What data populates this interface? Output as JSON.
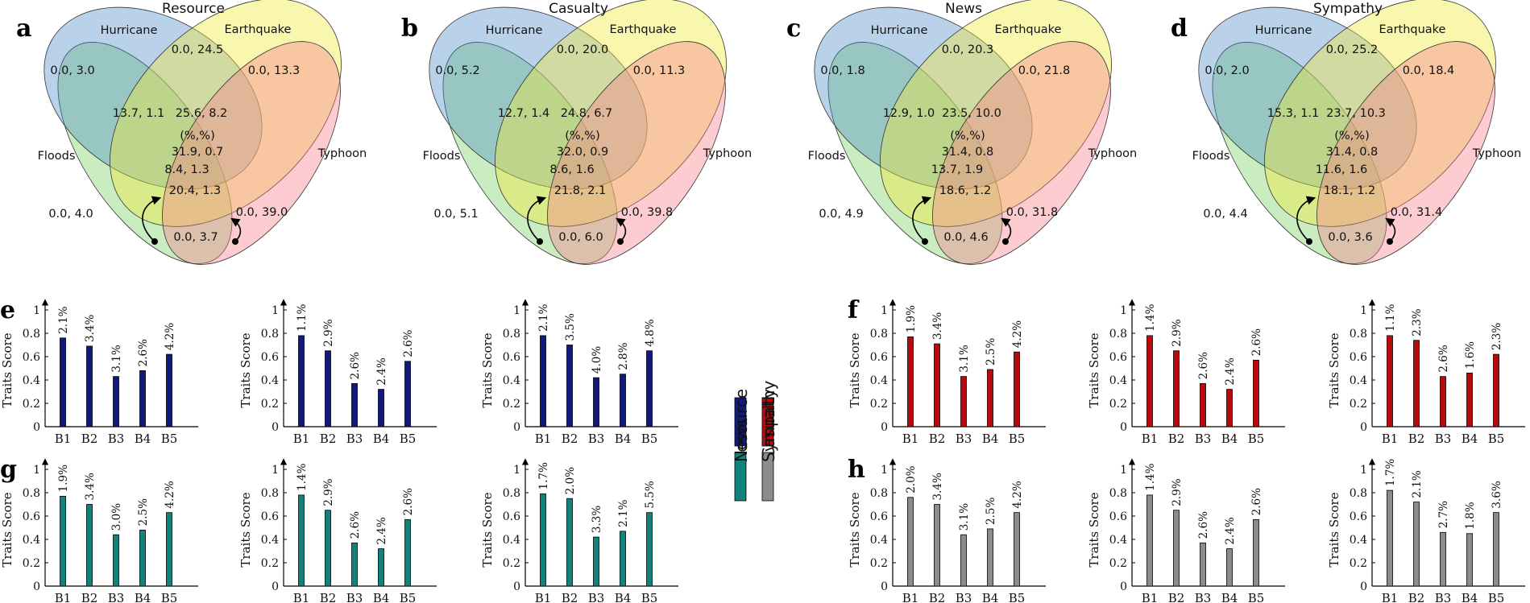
{
  "chart_data": [
    {
      "type": "venn",
      "panel_label": "a",
      "title": "Resource",
      "sets": [
        "Hurricane",
        "Earthquake",
        "Floods",
        "Typhoon"
      ],
      "center_header": "(%,%)",
      "regions": [
        "0.0, 3.0",
        "0.0, 24.5",
        "0.0, 13.3",
        "13.7, 1.1",
        "25.6, 8.2",
        "31.9, 0.7",
        "8.4, 1.3",
        "20.4, 1.3",
        "0.0, 4.0",
        "0.0, 39.0",
        "0.0, 3.7"
      ]
    },
    {
      "type": "venn",
      "panel_label": "b",
      "title": "Casualty",
      "sets": [
        "Hurricane",
        "Earthquake",
        "Floods",
        "Typhoon"
      ],
      "center_header": "(%,%)",
      "regions": [
        "0.0, 5.2",
        "0.0, 20.0",
        "0.0, 11.3",
        "12.7, 1.4",
        "24.8, 6.7",
        "32.0, 0.9",
        "8.6, 1.6",
        "21.8, 2.1",
        "0.0, 5.1",
        "0.0, 39.8",
        "0.0, 6.0"
      ]
    },
    {
      "type": "venn",
      "panel_label": "c",
      "title": "News",
      "sets": [
        "Hurricane",
        "Earthquake",
        "Floods",
        "Typhoon"
      ],
      "center_header": "(%,%)",
      "regions": [
        "0.0, 1.8",
        "0.0, 20.3",
        "0.0, 21.8",
        "12.9, 1.0",
        "23.5, 10.0",
        "31.4, 0.8",
        "13.7, 1.9",
        "18.6, 1.2",
        "0.0, 4.9",
        "0.0, 31.8",
        "0.0, 4.6"
      ]
    },
    {
      "type": "venn",
      "panel_label": "d",
      "title": "Sympathy",
      "sets": [
        "Hurricane",
        "Earthquake",
        "Floods",
        "Typhoon"
      ],
      "center_header": "(%,%)",
      "regions": [
        "0.0, 2.0",
        "0.0, 25.2",
        "0.0, 18.4",
        "15.3, 1.1",
        "23.7, 10.3",
        "31.4, 0.8",
        "11.6, 1.6",
        "18.1, 1.2",
        "0.0, 4.4",
        "0.0, 31.4",
        "0.0, 3.6"
      ]
    },
    {
      "type": "bar",
      "panel_label": "e",
      "series": "Resource",
      "color": "#111a7c",
      "categories": [
        "B1",
        "B2",
        "B3",
        "B4",
        "B5"
      ],
      "ylabel": "Traits Score",
      "ylim": [
        0,
        1
      ],
      "yticks": [
        "0",
        "0.2",
        "0.4",
        "0.6",
        "0.8",
        "1"
      ],
      "values": [
        0.76,
        0.69,
        0.43,
        0.48,
        0.62
      ],
      "labels": [
        "2.1%",
        "3.4%",
        "3.1%",
        "2.6%",
        "4.2%"
      ]
    },
    {
      "type": "bar",
      "panel_label": "",
      "series": "Resource",
      "color": "#111a7c",
      "categories": [
        "B1",
        "B2",
        "B3",
        "B4",
        "B5"
      ],
      "ylabel": "Traits Score",
      "ylim": [
        0,
        1
      ],
      "yticks": [
        "0",
        "0.2",
        "0.4",
        "0.6",
        "0.8",
        "1"
      ],
      "values": [
        0.78,
        0.65,
        0.37,
        0.32,
        0.56
      ],
      "labels": [
        "1.1%",
        "2.9%",
        "2.6%",
        "2.4%",
        "2.6%"
      ]
    },
    {
      "type": "bar",
      "panel_label": "",
      "series": "Resource",
      "color": "#111a7c",
      "categories": [
        "B1",
        "B2",
        "B3",
        "B4",
        "B5"
      ],
      "ylabel": "Traits Score",
      "ylim": [
        0,
        1
      ],
      "yticks": [
        "0",
        "0.2",
        "0.4",
        "0.6",
        "0.8",
        "1"
      ],
      "values": [
        0.78,
        0.7,
        0.42,
        0.45,
        0.65
      ],
      "labels": [
        "2.1%",
        "3.5%",
        "4.0%",
        "2.8%",
        "4.8%"
      ]
    },
    {
      "type": "bar",
      "panel_label": "f",
      "series": "Casualty",
      "color": "#b80c0c",
      "categories": [
        "B1",
        "B2",
        "B3",
        "B4",
        "B5"
      ],
      "ylabel": "Traits Score",
      "ylim": [
        0,
        1
      ],
      "yticks": [
        "0",
        "0.2",
        "0.4",
        "0.6",
        "0.8",
        "1"
      ],
      "values": [
        0.77,
        0.71,
        0.43,
        0.49,
        0.64
      ],
      "labels": [
        "1.9%",
        "3.4%",
        "3.1%",
        "2.5%",
        "4.2%"
      ]
    },
    {
      "type": "bar",
      "panel_label": "",
      "series": "Casualty",
      "color": "#b80c0c",
      "categories": [
        "B1",
        "B2",
        "B3",
        "B4",
        "B5"
      ],
      "ylabel": "Traits Score",
      "ylim": [
        0,
        1
      ],
      "yticks": [
        "0",
        "0.2",
        "0.4",
        "0.6",
        "0.8",
        "1"
      ],
      "values": [
        0.78,
        0.65,
        0.37,
        0.32,
        0.57
      ],
      "labels": [
        "1.4%",
        "2.9%",
        "2.6%",
        "2.4%",
        "2.6%"
      ]
    },
    {
      "type": "bar",
      "panel_label": "",
      "series": "Casualty",
      "color": "#b80c0c",
      "categories": [
        "B1",
        "B2",
        "B3",
        "B4",
        "B5"
      ],
      "ylabel": "Traits Score",
      "ylim": [
        0,
        1
      ],
      "yticks": [
        "0",
        "0.2",
        "0.4",
        "0.6",
        "0.8",
        "1"
      ],
      "values": [
        0.78,
        0.74,
        0.43,
        0.46,
        0.62
      ],
      "labels": [
        "1.1%",
        "2.3%",
        "2.6%",
        "1.6%",
        "2.3%"
      ]
    },
    {
      "type": "bar",
      "panel_label": "g",
      "series": "News",
      "color": "#11837a",
      "categories": [
        "B1",
        "B2",
        "B3",
        "B4",
        "B5"
      ],
      "ylabel": "Traits Score",
      "ylim": [
        0,
        1
      ],
      "yticks": [
        "0",
        "0.2",
        "0.4",
        "0.6",
        "0.8",
        "1"
      ],
      "values": [
        0.77,
        0.7,
        0.44,
        0.48,
        0.63
      ],
      "labels": [
        "1.9%",
        "3.4%",
        "3.0%",
        "2.5%",
        "4.2%"
      ]
    },
    {
      "type": "bar",
      "panel_label": "",
      "series": "News",
      "color": "#11837a",
      "categories": [
        "B1",
        "B2",
        "B3",
        "B4",
        "B5"
      ],
      "ylabel": "Traits Score",
      "ylim": [
        0,
        1
      ],
      "yticks": [
        "0",
        "0.2",
        "0.4",
        "0.6",
        "0.8",
        "1"
      ],
      "values": [
        0.78,
        0.65,
        0.37,
        0.32,
        0.57
      ],
      "labels": [
        "1.4%",
        "2.9%",
        "2.6%",
        "2.4%",
        "2.6%"
      ]
    },
    {
      "type": "bar",
      "panel_label": "",
      "series": "News",
      "color": "#11837a",
      "categories": [
        "B1",
        "B2",
        "B3",
        "B4",
        "B5"
      ],
      "ylabel": "Traits Score",
      "ylim": [
        0,
        1
      ],
      "yticks": [
        "0",
        "0.2",
        "0.4",
        "0.6",
        "0.8",
        "1"
      ],
      "values": [
        0.79,
        0.75,
        0.42,
        0.47,
        0.63
      ],
      "labels": [
        "1.7%",
        "2.0%",
        "3.3%",
        "2.1%",
        "5.5%"
      ]
    },
    {
      "type": "bar",
      "panel_label": "h",
      "series": "Sympathy",
      "color": "#8c8c8c",
      "categories": [
        "B1",
        "B2",
        "B3",
        "B4",
        "B5"
      ],
      "ylabel": "Traits Score",
      "ylim": [
        0,
        1
      ],
      "yticks": [
        "0",
        "0.2",
        "0.4",
        "0.6",
        "0.8",
        "1"
      ],
      "values": [
        0.76,
        0.7,
        0.44,
        0.49,
        0.63
      ],
      "labels": [
        "2.0%",
        "3.4%",
        "3.1%",
        "2.5%",
        "4.2%"
      ]
    },
    {
      "type": "bar",
      "panel_label": "",
      "series": "Sympathy",
      "color": "#8c8c8c",
      "categories": [
        "B1",
        "B2",
        "B3",
        "B4",
        "B5"
      ],
      "ylabel": "Traits Score",
      "ylim": [
        0,
        1
      ],
      "yticks": [
        "0",
        "0.2",
        "0.4",
        "0.6",
        "0.8",
        "1"
      ],
      "values": [
        0.78,
        0.65,
        0.37,
        0.32,
        0.57
      ],
      "labels": [
        "1.4%",
        "2.9%",
        "2.6%",
        "2.4%",
        "2.6%"
      ]
    },
    {
      "type": "bar",
      "panel_label": "",
      "series": "Sympathy",
      "color": "#8c8c8c",
      "categories": [
        "B1",
        "B2",
        "B3",
        "B4",
        "B5"
      ],
      "ylabel": "Traits Score",
      "ylim": [
        0,
        1
      ],
      "yticks": [
        "0",
        "0.2",
        "0.4",
        "0.6",
        "0.8",
        "1"
      ],
      "values": [
        0.82,
        0.72,
        0.46,
        0.45,
        0.63
      ],
      "labels": [
        "1.7%",
        "2.1%",
        "2.7%",
        "1.8%",
        "3.6%"
      ]
    }
  ],
  "legend": [
    {
      "label": "Resource",
      "color": "#111a7c"
    },
    {
      "label": "Casualty",
      "color": "#b80c0c"
    },
    {
      "label": "News",
      "color": "#11837a"
    },
    {
      "label": "Sympathy",
      "color": "#8c8c8c"
    }
  ],
  "venn_colors": {
    "hurricane": "#4a86c8",
    "earthquake": "#f1ea3c",
    "floods": "#7fd36b",
    "typhoon": "#f7808c"
  }
}
